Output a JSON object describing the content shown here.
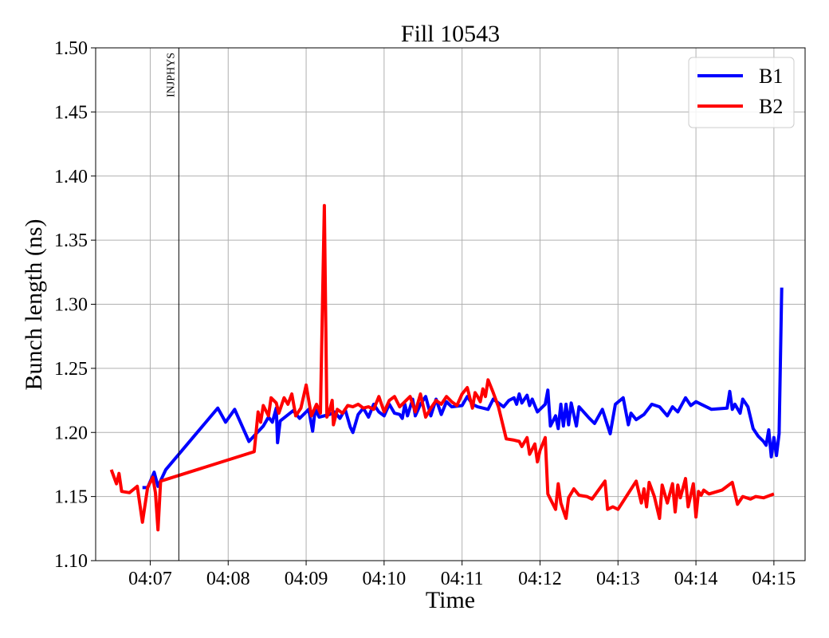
{
  "chart_data": {
    "type": "line",
    "title": "Fill 10543",
    "xlabel": "Time",
    "ylabel": "Bunch length (ns)",
    "xlim": [
      "04:06:18",
      "04:15:24"
    ],
    "ylim": [
      1.1,
      1.5
    ],
    "grid": true,
    "legend_position": "top-right",
    "x_ticks": [
      "04:07",
      "04:08",
      "04:09",
      "04:10",
      "04:11",
      "04:12",
      "04:13",
      "04:14",
      "04:15"
    ],
    "y_ticks": [
      "1.10",
      "1.15",
      "1.20",
      "1.25",
      "1.30",
      "1.35",
      "1.40",
      "1.45",
      "1.50"
    ],
    "annotations": [
      {
        "text": "INJPHYS",
        "x": "04:07:22"
      }
    ],
    "series": [
      {
        "name": "B1",
        "color": "#0000ff",
        "points": [
          [
            "04:06:54",
            1.157
          ],
          [
            "04:06:58",
            1.157
          ],
          [
            "04:07:03",
            1.169
          ],
          [
            "04:07:06",
            1.158
          ],
          [
            "04:07:12",
            1.171
          ],
          [
            "04:07:52",
            1.219
          ],
          [
            "04:07:58",
            1.208
          ],
          [
            "04:08:05",
            1.218
          ],
          [
            "04:08:16",
            1.193
          ],
          [
            "04:08:27",
            1.205
          ],
          [
            "04:08:31",
            1.212
          ],
          [
            "04:08:34",
            1.208
          ],
          [
            "04:08:37",
            1.219
          ],
          [
            "04:08:38",
            1.192
          ],
          [
            "04:08:40",
            1.209
          ],
          [
            "04:08:50",
            1.217
          ],
          [
            "04:08:55",
            1.211
          ],
          [
            "04:09:02",
            1.218
          ],
          [
            "04:09:05",
            1.201
          ],
          [
            "04:09:07",
            1.218
          ],
          [
            "04:09:10",
            1.212
          ],
          [
            "04:09:18",
            1.214
          ],
          [
            "04:09:22",
            1.216
          ],
          [
            "04:09:26",
            1.211
          ],
          [
            "04:09:30",
            1.218
          ],
          [
            "04:09:34",
            1.204
          ],
          [
            "04:09:36",
            1.2
          ],
          [
            "04:09:40",
            1.214
          ],
          [
            "04:09:44",
            1.219
          ],
          [
            "04:09:48",
            1.212
          ],
          [
            "04:09:52",
            1.222
          ],
          [
            "04:09:56",
            1.216
          ],
          [
            "04:10:00",
            1.213
          ],
          [
            "04:10:04",
            1.222
          ],
          [
            "04:10:08",
            1.215
          ],
          [
            "04:10:12",
            1.214
          ],
          [
            "04:10:14",
            1.211
          ],
          [
            "04:10:16",
            1.222
          ],
          [
            "04:10:18",
            1.213
          ],
          [
            "04:10:22",
            1.226
          ],
          [
            "04:10:24",
            1.213
          ],
          [
            "04:10:28",
            1.222
          ],
          [
            "04:10:32",
            1.228
          ],
          [
            "04:10:36",
            1.213
          ],
          [
            "04:10:40",
            1.226
          ],
          [
            "04:10:44",
            1.214
          ],
          [
            "04:10:48",
            1.224
          ],
          [
            "04:10:52",
            1.22
          ],
          [
            "04:11:00",
            1.221
          ],
          [
            "04:11:04",
            1.228
          ],
          [
            "04:11:08",
            1.222
          ],
          [
            "04:11:12",
            1.22
          ],
          [
            "04:11:16",
            1.219
          ],
          [
            "04:11:20",
            1.218
          ],
          [
            "04:11:24",
            1.226
          ],
          [
            "04:11:28",
            1.223
          ],
          [
            "04:11:32",
            1.22
          ],
          [
            "04:11:36",
            1.225
          ],
          [
            "04:11:40",
            1.227
          ],
          [
            "04:11:42",
            1.222
          ],
          [
            "04:11:44",
            1.23
          ],
          [
            "04:11:46",
            1.223
          ],
          [
            "04:11:50",
            1.229
          ],
          [
            "04:11:52",
            1.221
          ],
          [
            "04:11:54",
            1.226
          ],
          [
            "04:11:58",
            1.216
          ],
          [
            "04:12:04",
            1.222
          ],
          [
            "04:12:06",
            1.233
          ],
          [
            "04:12:08",
            1.205
          ],
          [
            "04:12:12",
            1.213
          ],
          [
            "04:12:14",
            1.203
          ],
          [
            "04:12:16",
            1.222
          ],
          [
            "04:12:18",
            1.205
          ],
          [
            "04:12:20",
            1.222
          ],
          [
            "04:12:22",
            1.206
          ],
          [
            "04:12:24",
            1.223
          ],
          [
            "04:12:28",
            1.205
          ],
          [
            "04:12:30",
            1.22
          ],
          [
            "04:12:38",
            1.211
          ],
          [
            "04:12:42",
            1.207
          ],
          [
            "04:12:48",
            1.218
          ],
          [
            "04:12:54",
            1.199
          ],
          [
            "04:12:58",
            1.222
          ],
          [
            "04:13:04",
            1.227
          ],
          [
            "04:13:08",
            1.206
          ],
          [
            "04:13:10",
            1.215
          ],
          [
            "04:13:14",
            1.21
          ],
          [
            "04:13:20",
            1.214
          ],
          [
            "04:13:26",
            1.222
          ],
          [
            "04:13:32",
            1.22
          ],
          [
            "04:13:38",
            1.213
          ],
          [
            "04:13:42",
            1.22
          ],
          [
            "04:13:46",
            1.216
          ],
          [
            "04:13:52",
            1.227
          ],
          [
            "04:13:56",
            1.221
          ],
          [
            "04:14:00",
            1.224
          ],
          [
            "04:14:04",
            1.222
          ],
          [
            "04:14:12",
            1.218
          ],
          [
            "04:14:24",
            1.219
          ],
          [
            "04:14:26",
            1.232
          ],
          [
            "04:14:28",
            1.218
          ],
          [
            "04:14:30",
            1.222
          ],
          [
            "04:14:34",
            1.215
          ],
          [
            "04:14:36",
            1.226
          ],
          [
            "04:14:40",
            1.22
          ],
          [
            "04:14:44",
            1.203
          ],
          [
            "04:14:48",
            1.197
          ],
          [
            "04:14:52",
            1.193
          ],
          [
            "04:14:54",
            1.19
          ],
          [
            "04:14:56",
            1.202
          ],
          [
            "04:14:58",
            1.181
          ],
          [
            "04:15:00",
            1.196
          ],
          [
            "04:15:02",
            1.182
          ],
          [
            "04:15:04",
            1.199
          ],
          [
            "04:15:06",
            1.313
          ]
        ]
      },
      {
        "name": "B2",
        "color": "#ff0000",
        "points": [
          [
            "04:06:30",
            1.171
          ],
          [
            "04:06:34",
            1.16
          ],
          [
            "04:06:36",
            1.168
          ],
          [
            "04:06:38",
            1.154
          ],
          [
            "04:06:44",
            1.153
          ],
          [
            "04:06:50",
            1.158
          ],
          [
            "04:06:54",
            1.13
          ],
          [
            "04:06:58",
            1.157
          ],
          [
            "04:07:02",
            1.165
          ],
          [
            "04:07:04",
            1.153
          ],
          [
            "04:07:06",
            1.124
          ],
          [
            "04:07:08",
            1.162
          ],
          [
            "04:08:20",
            1.185
          ],
          [
            "04:08:23",
            1.216
          ],
          [
            "04:08:25",
            1.208
          ],
          [
            "04:08:27",
            1.221
          ],
          [
            "04:08:31",
            1.213
          ],
          [
            "04:08:33",
            1.227
          ],
          [
            "04:08:37",
            1.223
          ],
          [
            "04:08:39",
            1.215
          ],
          [
            "04:08:43",
            1.227
          ],
          [
            "04:08:46",
            1.222
          ],
          [
            "04:08:49",
            1.23
          ],
          [
            "04:08:52",
            1.213
          ],
          [
            "04:08:56",
            1.219
          ],
          [
            "04:09:00",
            1.237
          ],
          [
            "04:09:04",
            1.213
          ],
          [
            "04:09:08",
            1.222
          ],
          [
            "04:09:11",
            1.215
          ],
          [
            "04:09:14",
            1.377
          ],
          [
            "04:09:16",
            1.212
          ],
          [
            "04:09:18",
            1.217
          ],
          [
            "04:09:20",
            1.225
          ],
          [
            "04:09:21",
            1.206
          ],
          [
            "04:09:24",
            1.218
          ],
          [
            "04:09:28",
            1.215
          ],
          [
            "04:09:32",
            1.221
          ],
          [
            "04:09:36",
            1.22
          ],
          [
            "04:09:40",
            1.222
          ],
          [
            "04:09:44",
            1.219
          ],
          [
            "04:09:48",
            1.22
          ],
          [
            "04:09:52",
            1.218
          ],
          [
            "04:09:56",
            1.228
          ],
          [
            "04:10:00",
            1.216
          ],
          [
            "04:10:04",
            1.225
          ],
          [
            "04:10:08",
            1.228
          ],
          [
            "04:10:12",
            1.22
          ],
          [
            "04:10:16",
            1.224
          ],
          [
            "04:10:20",
            1.228
          ],
          [
            "04:10:24",
            1.216
          ],
          [
            "04:10:28",
            1.23
          ],
          [
            "04:10:32",
            1.212
          ],
          [
            "04:10:36",
            1.219
          ],
          [
            "04:10:40",
            1.225
          ],
          [
            "04:10:44",
            1.222
          ],
          [
            "04:10:48",
            1.228
          ],
          [
            "04:10:52",
            1.224
          ],
          [
            "04:10:56",
            1.221
          ],
          [
            "04:11:00",
            1.23
          ],
          [
            "04:11:04",
            1.235
          ],
          [
            "04:11:08",
            1.219
          ],
          [
            "04:11:10",
            1.231
          ],
          [
            "04:11:12",
            1.228
          ],
          [
            "04:11:14",
            1.224
          ],
          [
            "04:11:16",
            1.234
          ],
          [
            "04:11:18",
            1.228
          ],
          [
            "04:11:20",
            1.241
          ],
          [
            "04:11:24",
            1.231
          ],
          [
            "04:11:28",
            1.22
          ],
          [
            "04:11:34",
            1.195
          ],
          [
            "04:11:40",
            1.194
          ],
          [
            "04:11:44",
            1.193
          ],
          [
            "04:11:46",
            1.189
          ],
          [
            "04:11:50",
            1.196
          ],
          [
            "04:11:52",
            1.183
          ],
          [
            "04:11:56",
            1.191
          ],
          [
            "04:11:58",
            1.177
          ],
          [
            "04:12:00",
            1.186
          ],
          [
            "04:12:04",
            1.196
          ],
          [
            "04:12:06",
            1.152
          ],
          [
            "04:12:08",
            1.148
          ],
          [
            "04:12:12",
            1.14
          ],
          [
            "04:12:14",
            1.16
          ],
          [
            "04:12:16",
            1.145
          ],
          [
            "04:12:20",
            1.133
          ],
          [
            "04:12:22",
            1.149
          ],
          [
            "04:12:26",
            1.156
          ],
          [
            "04:12:30",
            1.151
          ],
          [
            "04:12:36",
            1.15
          ],
          [
            "04:12:40",
            1.148
          ],
          [
            "04:12:50",
            1.162
          ],
          [
            "04:12:52",
            1.14
          ],
          [
            "04:12:56",
            1.142
          ],
          [
            "04:13:00",
            1.14
          ],
          [
            "04:13:14",
            1.162
          ],
          [
            "04:13:18",
            1.145
          ],
          [
            "04:13:20",
            1.156
          ],
          [
            "04:13:22",
            1.142
          ],
          [
            "04:13:24",
            1.161
          ],
          [
            "04:13:28",
            1.15
          ],
          [
            "04:13:32",
            1.133
          ],
          [
            "04:13:34",
            1.159
          ],
          [
            "04:13:38",
            1.145
          ],
          [
            "04:13:42",
            1.16
          ],
          [
            "04:13:44",
            1.138
          ],
          [
            "04:13:46",
            1.159
          ],
          [
            "04:13:48",
            1.149
          ],
          [
            "04:13:52",
            1.164
          ],
          [
            "04:13:54",
            1.142
          ],
          [
            "04:13:58",
            1.16
          ],
          [
            "04:14:00",
            1.134
          ],
          [
            "04:14:02",
            1.154
          ],
          [
            "04:14:04",
            1.151
          ],
          [
            "04:14:06",
            1.155
          ],
          [
            "04:14:10",
            1.152
          ],
          [
            "04:14:20",
            1.155
          ],
          [
            "04:14:28",
            1.161
          ],
          [
            "04:14:32",
            1.144
          ],
          [
            "04:14:36",
            1.15
          ],
          [
            "04:14:42",
            1.148
          ],
          [
            "04:14:46",
            1.15
          ],
          [
            "04:14:52",
            1.149
          ],
          [
            "04:15:00",
            1.152
          ]
        ]
      }
    ]
  }
}
